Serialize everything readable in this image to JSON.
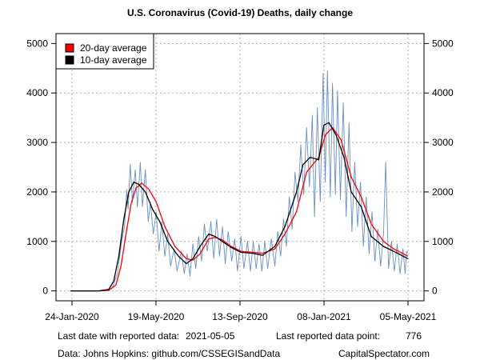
{
  "chart_data": {
    "type": "line",
    "title": "U.S. Coronavirus (Covid-19) Deaths, daily change",
    "x_ticks": [
      "24-Jan-2020",
      "19-May-2020",
      "13-Sep-2020",
      "08-Jan-2021",
      "05-May-2021"
    ],
    "y_ticks": [
      "0",
      "1000",
      "2000",
      "3000",
      "4000",
      "5000"
    ],
    "ylim": [
      -200,
      5200
    ],
    "x_range": [
      "2020-01-22",
      "2021-05-05"
    ],
    "grid": true,
    "legend_position": "top-left",
    "series": [
      {
        "name": "20-day average",
        "color": "#ff0000",
        "points": [
          [
            "2020-01-22",
            0
          ],
          [
            "2020-03-01",
            0
          ],
          [
            "2020-03-15",
            10
          ],
          [
            "2020-03-25",
            120
          ],
          [
            "2020-04-01",
            500
          ],
          [
            "2020-04-08",
            1150
          ],
          [
            "2020-04-15",
            1750
          ],
          [
            "2020-04-22",
            2080
          ],
          [
            "2020-04-30",
            2180
          ],
          [
            "2020-05-10",
            2050
          ],
          [
            "2020-05-20",
            1800
          ],
          [
            "2020-06-01",
            1300
          ],
          [
            "2020-06-15",
            900
          ],
          [
            "2020-07-01",
            650
          ],
          [
            "2020-07-10",
            620
          ],
          [
            "2020-07-20",
            750
          ],
          [
            "2020-08-01",
            1050
          ],
          [
            "2020-08-10",
            1080
          ],
          [
            "2020-08-20",
            1030
          ],
          [
            "2020-09-01",
            900
          ],
          [
            "2020-09-15",
            800
          ],
          [
            "2020-10-01",
            780
          ],
          [
            "2020-10-15",
            760
          ],
          [
            "2020-11-01",
            850
          ],
          [
            "2020-11-15",
            1150
          ],
          [
            "2020-12-01",
            1600
          ],
          [
            "2020-12-15",
            2400
          ],
          [
            "2021-01-01",
            2700
          ],
          [
            "2021-01-10",
            3150
          ],
          [
            "2021-01-20",
            3300
          ],
          [
            "2021-02-01",
            3050
          ],
          [
            "2021-02-15",
            2300
          ],
          [
            "2021-03-01",
            1900
          ],
          [
            "2021-03-15",
            1350
          ],
          [
            "2021-04-01",
            1000
          ],
          [
            "2021-04-15",
            850
          ],
          [
            "2021-05-05",
            700
          ]
        ]
      },
      {
        "name": "10-day average",
        "color": "#000000",
        "points": [
          [
            "2020-01-22",
            0
          ],
          [
            "2020-03-01",
            0
          ],
          [
            "2020-03-15",
            30
          ],
          [
            "2020-03-22",
            200
          ],
          [
            "2020-03-29",
            700
          ],
          [
            "2020-04-05",
            1450
          ],
          [
            "2020-04-12",
            2000
          ],
          [
            "2020-04-19",
            2200
          ],
          [
            "2020-04-26",
            2150
          ],
          [
            "2020-05-05",
            2000
          ],
          [
            "2020-05-15",
            1650
          ],
          [
            "2020-05-25",
            1400
          ],
          [
            "2020-06-05",
            1000
          ],
          [
            "2020-06-20",
            700
          ],
          [
            "2020-07-01",
            550
          ],
          [
            "2020-07-10",
            650
          ],
          [
            "2020-07-20",
            900
          ],
          [
            "2020-08-01",
            1150
          ],
          [
            "2020-08-10",
            1100
          ],
          [
            "2020-08-20",
            1000
          ],
          [
            "2020-09-01",
            880
          ],
          [
            "2020-09-15",
            780
          ],
          [
            "2020-10-01",
            760
          ],
          [
            "2020-10-15",
            720
          ],
          [
            "2020-11-01",
            900
          ],
          [
            "2020-11-15",
            1300
          ],
          [
            "2020-12-01",
            2000
          ],
          [
            "2020-12-10",
            2550
          ],
          [
            "2020-12-20",
            2700
          ],
          [
            "2021-01-01",
            2650
          ],
          [
            "2021-01-08",
            3350
          ],
          [
            "2021-01-15",
            3400
          ],
          [
            "2021-01-25",
            3150
          ],
          [
            "2021-02-05",
            2700
          ],
          [
            "2021-02-15",
            2000
          ],
          [
            "2021-03-01",
            1700
          ],
          [
            "2021-03-15",
            1100
          ],
          [
            "2021-04-01",
            900
          ],
          [
            "2021-04-15",
            800
          ],
          [
            "2021-05-05",
            650
          ]
        ]
      },
      {
        "name": "daily change",
        "color": "#6a8fc4",
        "points": [
          [
            "2020-01-22",
            0
          ],
          [
            "2020-03-10",
            0
          ],
          [
            "2020-03-20",
            60
          ],
          [
            "2020-03-27",
            350
          ],
          [
            "2020-04-02",
            1000
          ],
          [
            "2020-04-06",
            1300
          ],
          [
            "2020-04-09",
            2050
          ],
          [
            "2020-04-11",
            1650
          ],
          [
            "2020-04-14",
            2550
          ],
          [
            "2020-04-17",
            1800
          ],
          [
            "2020-04-21",
            2450
          ],
          [
            "2020-04-24",
            1700
          ],
          [
            "2020-04-28",
            2600
          ],
          [
            "2020-05-01",
            1700
          ],
          [
            "2020-05-05",
            2450
          ],
          [
            "2020-05-09",
            1400
          ],
          [
            "2020-05-12",
            1800
          ],
          [
            "2020-05-16",
            1150
          ],
          [
            "2020-05-20",
            1600
          ],
          [
            "2020-05-24",
            800
          ],
          [
            "2020-05-28",
            1400
          ],
          [
            "2020-06-01",
            700
          ],
          [
            "2020-06-05",
            1150
          ],
          [
            "2020-06-09",
            500
          ],
          [
            "2020-06-14",
            850
          ],
          [
            "2020-06-18",
            400
          ],
          [
            "2020-06-24",
            800
          ],
          [
            "2020-06-28",
            350
          ],
          [
            "2020-07-02",
            750
          ],
          [
            "2020-07-06",
            300
          ],
          [
            "2020-07-10",
            950
          ],
          [
            "2020-07-14",
            450
          ],
          [
            "2020-07-18",
            1100
          ],
          [
            "2020-07-22",
            600
          ],
          [
            "2020-07-26",
            1350
          ],
          [
            "2020-07-30",
            800
          ],
          [
            "2020-08-04",
            1400
          ],
          [
            "2020-08-08",
            650
          ],
          [
            "2020-08-12",
            1450
          ],
          [
            "2020-08-16",
            700
          ],
          [
            "2020-08-20",
            1300
          ],
          [
            "2020-08-24",
            550
          ],
          [
            "2020-08-28",
            1200
          ],
          [
            "2020-09-02",
            600
          ],
          [
            "2020-09-06",
            1050
          ],
          [
            "2020-09-10",
            400
          ],
          [
            "2020-09-15",
            1100
          ],
          [
            "2020-09-19",
            450
          ],
          [
            "2020-09-24",
            1000
          ],
          [
            "2020-09-28",
            400
          ],
          [
            "2020-10-02",
            1000
          ],
          [
            "2020-10-06",
            450
          ],
          [
            "2020-10-10",
            950
          ],
          [
            "2020-10-14",
            400
          ],
          [
            "2020-10-18",
            1000
          ],
          [
            "2020-10-22",
            450
          ],
          [
            "2020-10-27",
            1050
          ],
          [
            "2020-11-01",
            500
          ],
          [
            "2020-11-05",
            1200
          ],
          [
            "2020-11-09",
            700
          ],
          [
            "2020-11-13",
            1450
          ],
          [
            "2020-11-17",
            900
          ],
          [
            "2020-11-21",
            1900
          ],
          [
            "2020-11-25",
            1250
          ],
          [
            "2020-11-29",
            2400
          ],
          [
            "2020-12-03",
            1800
          ],
          [
            "2020-12-07",
            2950
          ],
          [
            "2020-12-11",
            1950
          ],
          [
            "2020-12-15",
            3300
          ],
          [
            "2020-12-19",
            2100
          ],
          [
            "2020-12-23",
            3550
          ],
          [
            "2020-12-26",
            1500
          ],
          [
            "2020-12-30",
            3700
          ],
          [
            "2021-01-03",
            1800
          ],
          [
            "2021-01-07",
            4400
          ],
          [
            "2021-01-10",
            2200
          ],
          [
            "2021-01-13",
            4450
          ],
          [
            "2021-01-17",
            1900
          ],
          [
            "2021-01-20",
            4200
          ],
          [
            "2021-01-24",
            1950
          ],
          [
            "2021-01-27",
            4050
          ],
          [
            "2021-01-31",
            1850
          ],
          [
            "2021-02-04",
            3800
          ],
          [
            "2021-02-08",
            1500
          ],
          [
            "2021-02-12",
            3400
          ],
          [
            "2021-02-16",
            1200
          ],
          [
            "2021-02-20",
            2600
          ],
          [
            "2021-02-24",
            1300
          ],
          [
            "2021-02-28",
            2200
          ],
          [
            "2021-03-04",
            900
          ],
          [
            "2021-03-08",
            1900
          ],
          [
            "2021-03-12",
            750
          ],
          [
            "2021-03-16",
            1600
          ],
          [
            "2021-03-20",
            600
          ],
          [
            "2021-03-24",
            1250
          ],
          [
            "2021-03-28",
            500
          ],
          [
            "2021-04-01",
            1150
          ],
          [
            "2021-04-04",
            2600
          ],
          [
            "2021-04-08",
            450
          ],
          [
            "2021-04-12",
            1000
          ],
          [
            "2021-04-16",
            400
          ],
          [
            "2021-04-20",
            950
          ],
          [
            "2021-04-24",
            350
          ],
          [
            "2021-04-28",
            850
          ],
          [
            "2021-05-01",
            350
          ],
          [
            "2021-05-03",
            800
          ],
          [
            "2021-05-05",
            776
          ]
        ]
      }
    ]
  },
  "footer": {
    "last_date_label": "Last date with reported data:",
    "last_date_value": "2021-05-05",
    "last_point_label": "Last reported data point:",
    "last_point_value": "776",
    "source": "Data: Johns Hopkins: github.com/CSSEGISandData",
    "credit": "CapitalSpectator.com"
  }
}
